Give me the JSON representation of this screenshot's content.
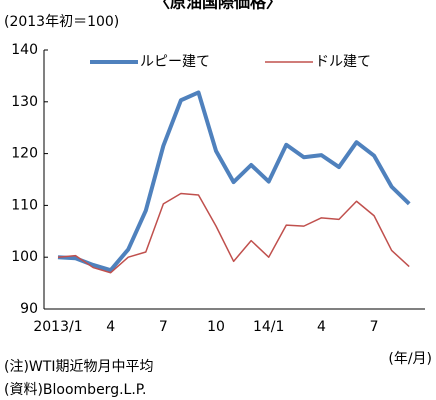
{
  "chart_data": {
    "type": "line",
    "title": "〈原油国際価格〉",
    "subtitle": "(2013年初＝100)",
    "note": "(注)WTI期近物月中平均",
    "source": "(資料)Bloomberg.L.P.",
    "x_label": "(年/月)",
    "categories": [
      "2013/1",
      null,
      null,
      "4",
      null,
      null,
      "7",
      null,
      null,
      "10",
      null,
      null,
      "14/1",
      null,
      null,
      "4",
      null,
      null,
      "7",
      null,
      null
    ],
    "series": [
      {
        "name": "ルピー建て",
        "color": "#4f81bd",
        "values": [
          100,
          99.8,
          98.5,
          97.5,
          101.5,
          109,
          121.5,
          130.3,
          131.8,
          120.5,
          114.5,
          117.8,
          114.6,
          121.7,
          119.3,
          119.7,
          117.4,
          122.2,
          119.6,
          113.6,
          110.3
        ]
      },
      {
        "name": "ドル建て",
        "color": "#c0504d",
        "values": [
          100,
          100.3,
          98,
          97,
          100,
          101,
          110.3,
          112.3,
          112,
          106,
          99.2,
          103.2,
          100,
          106.2,
          106,
          107.6,
          107.3,
          110.8,
          108,
          101.3,
          98.2
        ]
      }
    ],
    "ylim": [
      90,
      140
    ],
    "yticks": [
      90,
      100,
      110,
      120,
      130,
      140
    ],
    "legend": "top"
  }
}
